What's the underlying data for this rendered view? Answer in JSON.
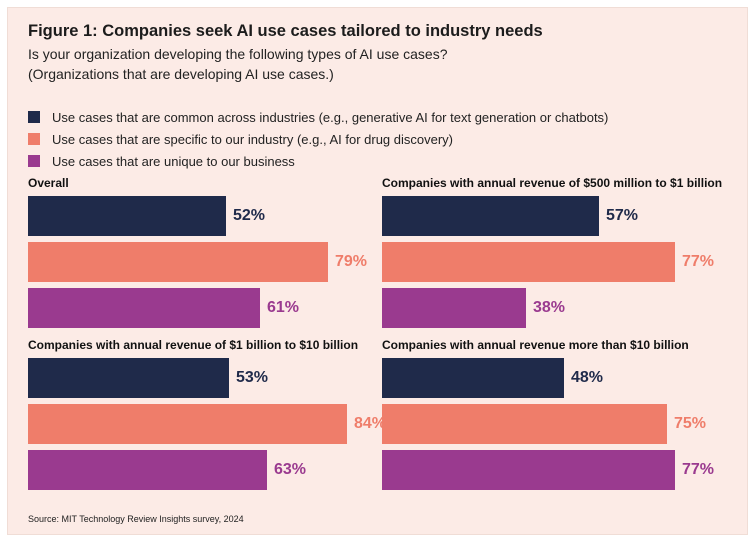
{
  "title": "Figure 1: Companies seek AI use cases tailored to industry needs",
  "subtitle": {
    "line1": "Is your organization developing the following types of AI use cases?",
    "line2": "(Organizations that are developing AI use cases.)"
  },
  "source": "Source: MIT Technology Review Insights survey, 2024",
  "colors": {
    "common": "#1f2a4a",
    "industry": "#ef7d6a",
    "unique": "#9a3a8f"
  },
  "chart_data": {
    "type": "bar",
    "orientation": "horizontal",
    "series": [
      {
        "name": "Use cases that are common across industries (e.g., generative AI for text generation or chatbots)",
        "color": "#1f2a4a"
      },
      {
        "name": "Use cases that are specific to our industry (e.g., AI for drug discovery)",
        "color": "#ef7d6a"
      },
      {
        "name": "Use cases that are unique to our business",
        "color": "#9a3a8f"
      }
    ],
    "panels": [
      {
        "title": "Overall",
        "values": [
          52,
          79,
          61
        ],
        "labels": [
          "52%",
          "79%",
          "61%"
        ]
      },
      {
        "title": "Companies with annual revenue of $500 million to $1 billion",
        "values": [
          57,
          77,
          38
        ],
        "labels": [
          "57%",
          "77%",
          "38%"
        ]
      },
      {
        "title": "Companies with annual revenue of $1 billion to $10 billion",
        "values": [
          53,
          84,
          63
        ],
        "labels": [
          "53%",
          "84%",
          "63%"
        ]
      },
      {
        "title": "Companies with annual revenue more than $10 billion",
        "values": [
          48,
          75,
          77
        ],
        "labels": [
          "48%",
          "75%",
          "77%"
        ]
      }
    ],
    "unit": "%",
    "xlim": [
      0,
      100
    ]
  }
}
